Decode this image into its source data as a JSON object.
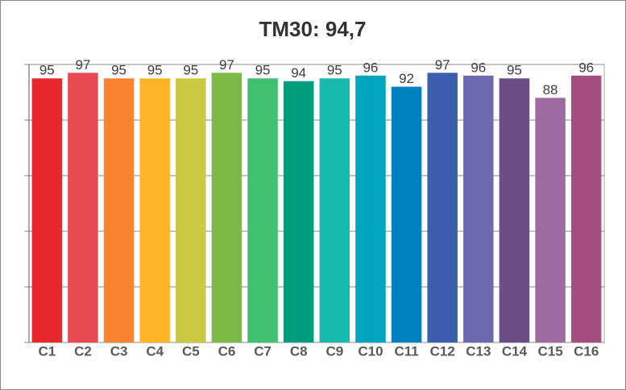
{
  "chart_data": {
    "type": "bar",
    "title": "TM30: 94,7",
    "categories": [
      "C1",
      "C2",
      "C3",
      "C4",
      "C5",
      "C6",
      "C7",
      "C8",
      "C9",
      "C10",
      "C11",
      "C12",
      "C13",
      "C14",
      "C15",
      "C16"
    ],
    "values": [
      95,
      97,
      95,
      95,
      95,
      97,
      95,
      94,
      95,
      96,
      92,
      97,
      96,
      95,
      88,
      96
    ],
    "colors": [
      "#e8262d",
      "#e84b52",
      "#fa8330",
      "#fdb42b",
      "#cbc944",
      "#7db946",
      "#3fc06e",
      "#009e7a",
      "#19b9b0",
      "#00a4bd",
      "#0082c0",
      "#3b5fac",
      "#6f6aaf",
      "#6a4e88",
      "#9e6aa4",
      "#a64e7f"
    ],
    "ylim": [
      0,
      100
    ],
    "yticks": [
      0,
      20,
      40,
      60,
      80,
      100
    ],
    "grid": true
  }
}
